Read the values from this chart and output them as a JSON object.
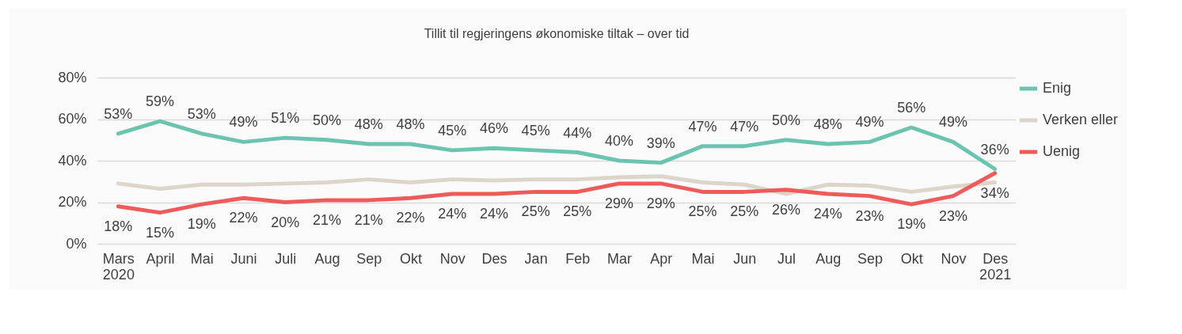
{
  "chart_data": {
    "type": "line",
    "title": "Tillit til regjeringens økonomiske tiltak – over tid",
    "categories": [
      "Mars 2020",
      "April",
      "Mai",
      "Juni",
      "Juli",
      "Aug",
      "Sep",
      "Okt",
      "Nov",
      "Des",
      "Jan",
      "Feb",
      "Mar",
      "Apr",
      "Mai",
      "Jun",
      "Jul",
      "Aug",
      "Sep",
      "Okt",
      "Nov",
      "Des 2021"
    ],
    "series": [
      {
        "name": "Enig",
        "color": "#6cc4b0",
        "values": [
          53,
          59,
          53,
          49,
          51,
          50,
          48,
          48,
          45,
          46,
          45,
          44,
          40,
          39,
          47,
          47,
          50,
          48,
          49,
          56,
          49,
          36
        ],
        "value_labels": [
          "53%",
          "59%",
          "53%",
          "49%",
          "51%",
          "50%",
          "48%",
          "48%",
          "45%",
          "46%",
          "45%",
          "44%",
          "40%",
          "39%",
          "47%",
          "47%",
          "50%",
          "48%",
          "49%",
          "56%",
          "49%",
          "36%"
        ]
      },
      {
        "name": "Verken eller",
        "color": "#ddd5ca",
        "values": [
          29,
          26.5,
          28.5,
          28.5,
          29,
          29.5,
          31,
          29.5,
          31,
          30.5,
          31,
          31,
          32,
          32.5,
          29.5,
          28.5,
          24,
          28.5,
          28,
          25,
          27.5,
          29.5
        ]
      },
      {
        "name": "Uenig",
        "color": "#ef5b5b",
        "values": [
          18,
          15,
          19,
          22,
          20,
          21,
          21,
          22,
          24,
          24,
          25,
          25,
          29,
          29,
          25,
          25,
          26,
          24,
          23,
          19,
          23,
          34
        ],
        "value_labels": [
          "18%",
          "15%",
          "19%",
          "22%",
          "20%",
          "21%",
          "21%",
          "22%",
          "24%",
          "24%",
          "25%",
          "25%",
          "29%",
          "29%",
          "25%",
          "25%",
          "26%",
          "24%",
          "23%",
          "19%",
          "23%",
          "34%"
        ]
      }
    ],
    "ylim": [
      0,
      80
    ],
    "yticks": [
      {
        "value": 0,
        "label": "0%"
      },
      {
        "value": 20,
        "label": "20%"
      },
      {
        "value": 40,
        "label": "40%"
      },
      {
        "value": 60,
        "label": "60%"
      },
      {
        "value": 80,
        "label": "80%"
      }
    ],
    "grid": "y",
    "legend": "right",
    "marker": "none",
    "line_style": "solid"
  }
}
